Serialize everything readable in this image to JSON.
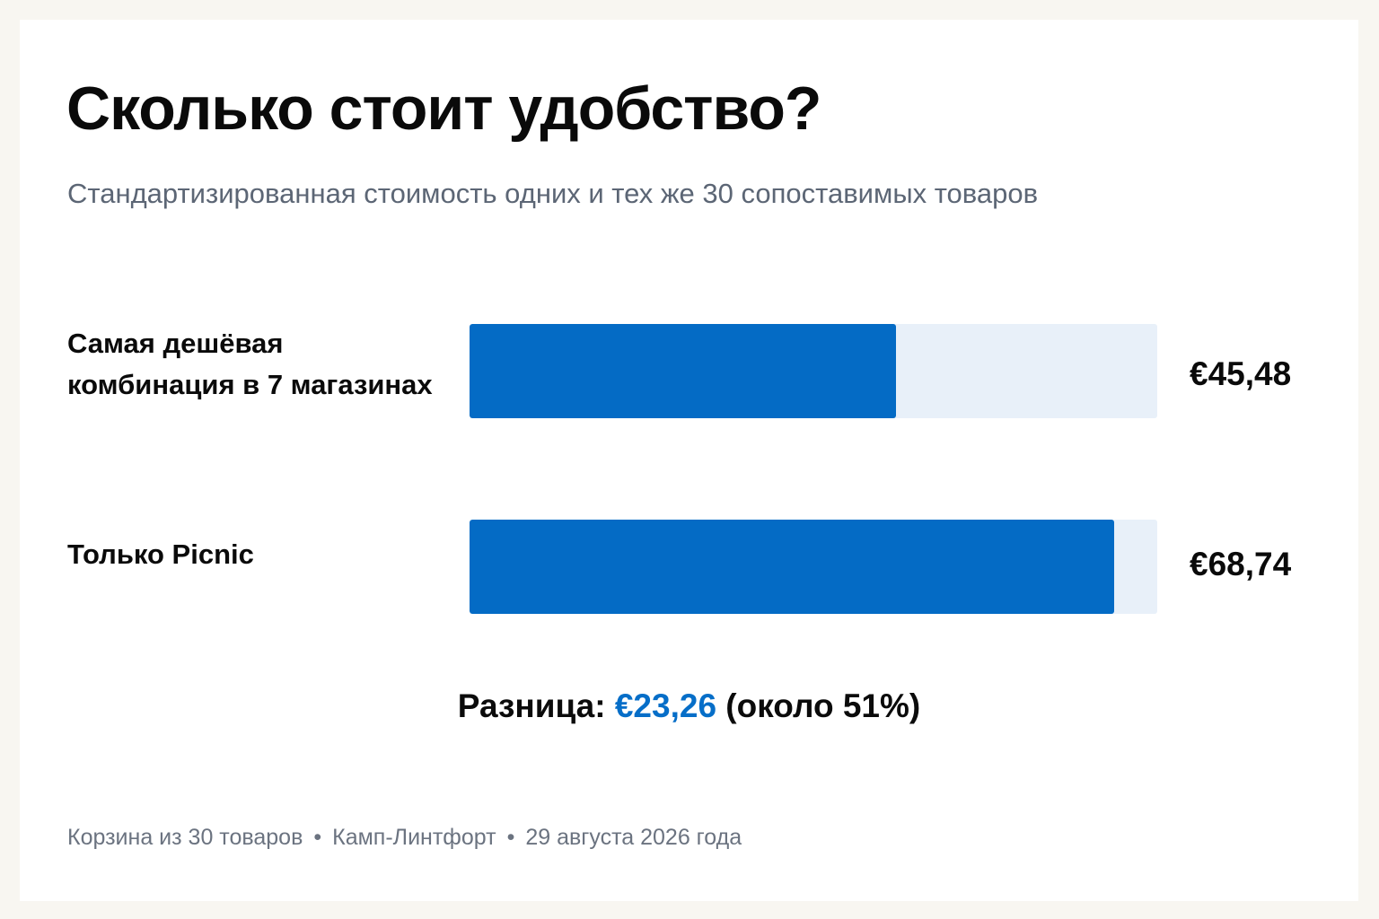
{
  "chart_data": {
    "type": "bar",
    "orientation": "horizontal",
    "title": "Сколько стоит удобство?",
    "subtitle": "Стандартизированная стоимость одних и тех же 30 сопоставимых товаров",
    "categories": [
      "Самая дешёвая\nкомбинация в 7 магазинах",
      "Только Picnic"
    ],
    "values": [
      45.48,
      68.74
    ],
    "value_labels": [
      "€45,48",
      "€68,74"
    ],
    "xlim": [
      0,
      73.3
    ],
    "grid": false,
    "bar_color": "#046bc5",
    "track_color": "#e8f0f9"
  },
  "summary": {
    "prefix": "Разница: ",
    "amount": "€23,26",
    "suffix": " (около 51%)",
    "accent_color": "#066ec8"
  },
  "footer": {
    "parts": [
      "Корзина из 30 товаров",
      "Камп-Линтфорт",
      "29 августа 2026 года"
    ],
    "separator": "•"
  }
}
